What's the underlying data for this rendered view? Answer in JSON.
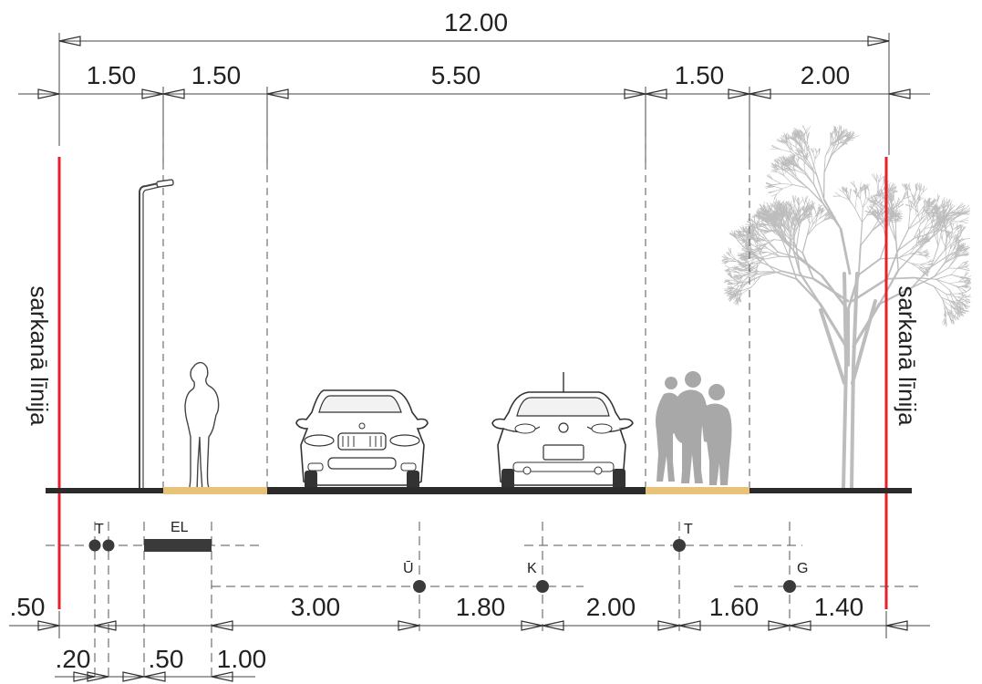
{
  "total_width": "12.00",
  "top_dims": [
    "1.50",
    "1.50",
    "5.50",
    "1.50",
    "2.00"
  ],
  "bottom_dims_row1": [
    ".50",
    "3.00",
    "1.80",
    "2.00",
    "1.60",
    "1.40"
  ],
  "bottom_dims_row2": [
    ".20",
    ".50",
    "1.00"
  ],
  "red_line_label": "sarkanā līnija",
  "utility_labels": {
    "t_left": "T",
    "el": "EL",
    "u": "Ū",
    "k": "K",
    "t_right": "T",
    "g": "G"
  },
  "colors": {
    "red_line": "#e8202a",
    "sidewalk": "#e9c27a",
    "asphalt": "#2b2b2b",
    "tree": "#bdbdbd",
    "silhouette": "#a8a8a8"
  },
  "icons": [
    "street-lamp-icon",
    "pedestrian-icon",
    "car-front-icon",
    "car-rear-icon",
    "pedestrians-icon",
    "tree-icon"
  ]
}
